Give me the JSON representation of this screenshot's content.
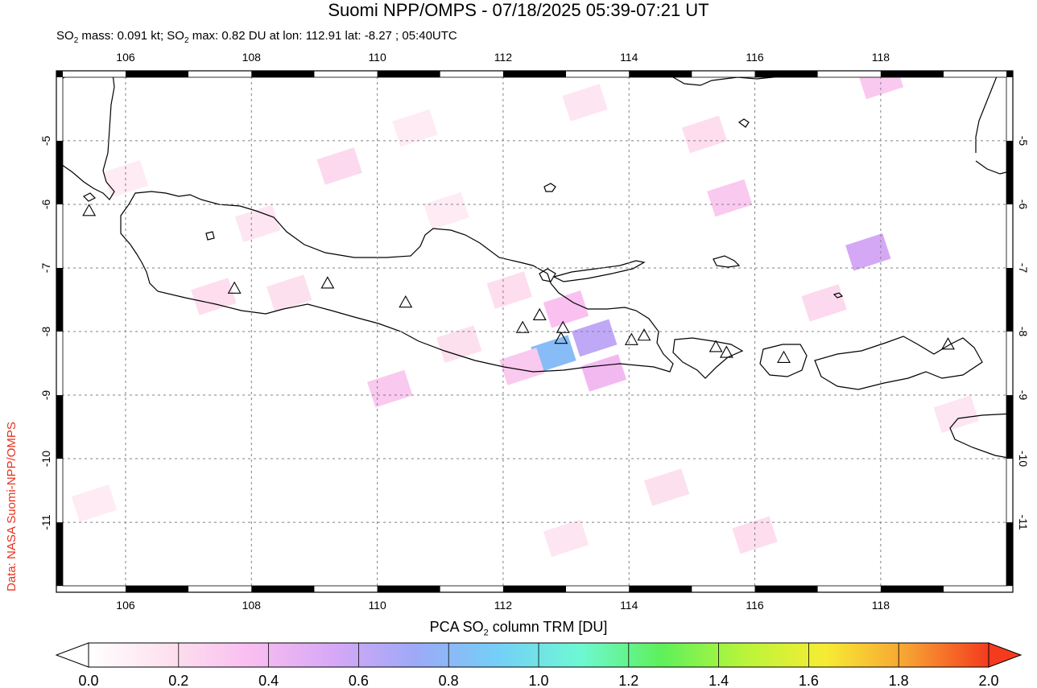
{
  "title": "Suomi NPP/OMPS - 07/18/2025 05:39-07:21 UT",
  "subtitle": {
    "so2_mass_prefix": "SO",
    "so2_mass_sub": "2",
    "so2_mass_text": " mass: 0.091 kt; SO",
    "so2_max_sub": "2",
    "so2_max_text": " max: 0.82 DU at lon: 112.91 lat: -8.27 ; 05:40UTC"
  },
  "credit": "Data: NASA Suomi-NPP/OMPS",
  "map": {
    "lon_range": [
      104.9,
      120.1
    ],
    "lat_range": [
      -12.1,
      -3.9
    ],
    "lon_ticks": [
      "106",
      "108",
      "110",
      "112",
      "114",
      "116",
      "118"
    ],
    "lat_ticks": [
      "-5",
      "-6",
      "-7",
      "-8",
      "-9",
      "-10",
      "-11"
    ],
    "volcanoes": [
      {
        "lon": 105.42,
        "lat": -6.1
      },
      {
        "lon": 107.73,
        "lat": -7.32
      },
      {
        "lon": 109.21,
        "lat": -7.24
      },
      {
        "lon": 110.45,
        "lat": -7.54
      },
      {
        "lon": 112.31,
        "lat": -7.94
      },
      {
        "lon": 112.58,
        "lat": -7.74
      },
      {
        "lon": 112.95,
        "lat": -7.94
      },
      {
        "lon": 112.92,
        "lat": -8.11
      },
      {
        "lon": 114.04,
        "lat": -8.13
      },
      {
        "lon": 114.24,
        "lat": -8.06
      },
      {
        "lon": 115.38,
        "lat": -8.24
      },
      {
        "lon": 115.55,
        "lat": -8.33
      },
      {
        "lon": 116.46,
        "lat": -8.41
      },
      {
        "lon": 119.07,
        "lat": -8.2
      }
    ],
    "so2_cells": [
      {
        "lon": 112.8,
        "lat": -8.35,
        "du": 0.82
      },
      {
        "lon": 113.45,
        "lat": -8.1,
        "du": 0.62
      },
      {
        "lon": 113.0,
        "lat": -7.65,
        "du": 0.35
      },
      {
        "lon": 113.6,
        "lat": -8.65,
        "du": 0.4
      },
      {
        "lon": 112.3,
        "lat": -8.55,
        "du": 0.3
      },
      {
        "lon": 112.1,
        "lat": -7.35,
        "du": 0.2
      },
      {
        "lon": 110.2,
        "lat": -8.9,
        "du": 0.3
      },
      {
        "lon": 109.4,
        "lat": -5.4,
        "du": 0.22
      },
      {
        "lon": 111.3,
        "lat": -8.2,
        "du": 0.18
      },
      {
        "lon": 117.8,
        "lat": -6.75,
        "du": 0.55
      },
      {
        "lon": 115.6,
        "lat": -5.9,
        "du": 0.3
      },
      {
        "lon": 118.0,
        "lat": -4.05,
        "du": 0.3
      },
      {
        "lon": 117.1,
        "lat": -7.55,
        "du": 0.22
      },
      {
        "lon": 113.0,
        "lat": -11.25,
        "du": 0.15
      },
      {
        "lon": 114.6,
        "lat": -10.45,
        "du": 0.18
      },
      {
        "lon": 116.0,
        "lat": -11.2,
        "du": 0.2
      },
      {
        "lon": 115.2,
        "lat": -4.9,
        "du": 0.2
      },
      {
        "lon": 107.4,
        "lat": -7.45,
        "du": 0.2
      },
      {
        "lon": 108.6,
        "lat": -7.4,
        "du": 0.18
      },
      {
        "lon": 106.0,
        "lat": -5.6,
        "du": 0.12
      },
      {
        "lon": 105.5,
        "lat": -10.7,
        "du": 0.12
      },
      {
        "lon": 110.6,
        "lat": -4.8,
        "du": 0.12
      },
      {
        "lon": 113.3,
        "lat": -4.4,
        "du": 0.15
      },
      {
        "lon": 119.2,
        "lat": -9.3,
        "du": 0.15
      },
      {
        "lon": 108.1,
        "lat": -6.3,
        "du": 0.15
      },
      {
        "lon": 111.1,
        "lat": -6.1,
        "du": 0.12
      }
    ]
  },
  "colorbar": {
    "title_prefix": "PCA SO",
    "title_sub": "2",
    "title_suffix": " column TRM [DU]",
    "labels": [
      "0.0",
      "0.2",
      "0.4",
      "0.6",
      "0.8",
      "1.0",
      "1.2",
      "1.4",
      "1.6",
      "1.8",
      "2.0"
    ],
    "range": [
      0.0,
      2.0
    ],
    "stops": [
      "#ffffff",
      "#fde0ee",
      "#f9bdf0",
      "#d6a8f6",
      "#9da9f7",
      "#74cff7",
      "#6ef8d4",
      "#5ef05b",
      "#b8f53a",
      "#f7ec33",
      "#f7a233",
      "#f43b1e"
    ]
  }
}
